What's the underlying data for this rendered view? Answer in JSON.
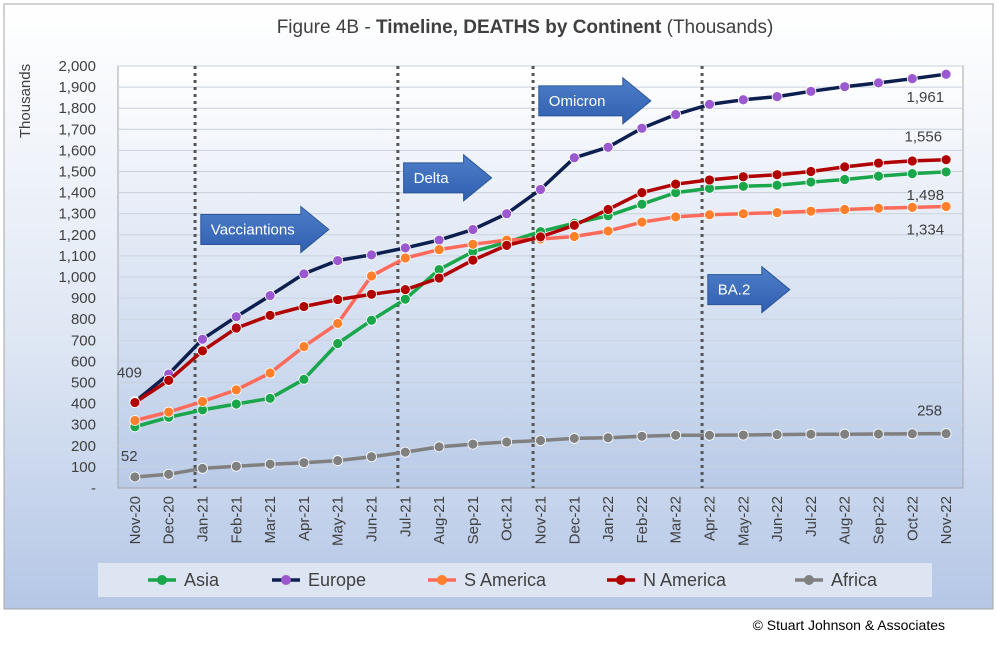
{
  "chart_data": {
    "type": "line",
    "title_prefix": "Figure 4B - ",
    "title_bold": "Timeline, DEATHS by Continent",
    "title_suffix": " (Thousands)",
    "ylabel": "Thousands",
    "xlabel": "",
    "ylim": [
      0,
      2000
    ],
    "ytick_step": 100,
    "ytick_labels": [
      "-",
      "100",
      "200",
      "300",
      "400",
      "500",
      "600",
      "700",
      "800",
      "900",
      "1,000",
      "1,100",
      "1,200",
      "1,300",
      "1,400",
      "1,500",
      "1,600",
      "1,700",
      "1,800",
      "1,900",
      "2,000"
    ],
    "grid": true,
    "legend_position": "bottom",
    "categories": [
      "Nov-20",
      "Dec-20",
      "Jan-21",
      "Feb-21",
      "Mar-21",
      "Apr-21",
      "May-21",
      "Jun-21",
      "Jul-21",
      "Aug-21",
      "Sep-21",
      "Oct-21",
      "Nov-21",
      "Dec-21",
      "Jan-22",
      "Feb-22",
      "Mar-22",
      "Apr-22",
      "May-22",
      "Jun-22",
      "Jul-22",
      "Aug-22",
      "Sep-22",
      "Oct-22",
      "Nov-22"
    ],
    "series": [
      {
        "name": "Asia",
        "color": "#1aa64a",
        "values": [
          290,
          335,
          370,
          398,
          425,
          515,
          685,
          795,
          895,
          1035,
          1120,
          1165,
          1215,
          1255,
          1290,
          1345,
          1400,
          1420,
          1430,
          1435,
          1450,
          1462,
          1478,
          1490,
          1498
        ]
      },
      {
        "name": "Europe",
        "color": "#0d1f4f",
        "marker": "#9b59d0",
        "values": [
          409,
          540,
          705,
          812,
          912,
          1015,
          1078,
          1105,
          1138,
          1175,
          1225,
          1300,
          1415,
          1565,
          1615,
          1705,
          1770,
          1818,
          1840,
          1855,
          1880,
          1902,
          1920,
          1940,
          1961
        ]
      },
      {
        "name": "S America",
        "color": "#ff6a5a",
        "marker": "#ff7f2a",
        "values": [
          320,
          360,
          410,
          465,
          545,
          670,
          780,
          1005,
          1090,
          1130,
          1155,
          1175,
          1180,
          1192,
          1218,
          1260,
          1285,
          1295,
          1300,
          1305,
          1312,
          1320,
          1326,
          1330,
          1334
        ]
      },
      {
        "name": "N America",
        "color": "#b00000",
        "values": [
          405,
          510,
          650,
          758,
          818,
          860,
          893,
          918,
          940,
          995,
          1080,
          1150,
          1190,
          1245,
          1320,
          1400,
          1440,
          1460,
          1475,
          1485,
          1500,
          1522,
          1540,
          1550,
          1556
        ]
      },
      {
        "name": "Africa",
        "color": "#808080",
        "values": [
          52,
          65,
          93,
          103,
          113,
          120,
          130,
          148,
          170,
          195,
          208,
          218,
          225,
          235,
          238,
          245,
          250,
          250,
          251,
          253,
          255,
          255,
          256,
          257,
          258
        ]
      }
    ],
    "point_labels": [
      {
        "series": "Europe",
        "index": 0,
        "text": "409",
        "pos": "above-left"
      },
      {
        "series": "Africa",
        "index": 0,
        "text": "52",
        "pos": "above"
      },
      {
        "series": "Europe",
        "index": 24,
        "text": "1,961",
        "pos": "below-left"
      },
      {
        "series": "N America",
        "index": 24,
        "text": "1,556",
        "pos": "above-left"
      },
      {
        "series": "Asia",
        "index": 24,
        "text": "1,498",
        "pos": "below-left"
      },
      {
        "series": "S America",
        "index": 24,
        "text": "1,334",
        "pos": "below-left"
      },
      {
        "series": "Africa",
        "index": 24,
        "text": "258",
        "pos": "above-left"
      }
    ],
    "annotations": [
      {
        "text": "Vacciantions",
        "at_category": "Jan-21",
        "y": 1225
      },
      {
        "text": "Delta",
        "at_category": "Jul-21",
        "y": 1470
      },
      {
        "text": "Omicron",
        "at_category": "Nov-21",
        "y": 1835
      },
      {
        "text": "BA.2",
        "at_category": "Apr-22",
        "y": 940
      }
    ],
    "vertical_markers": [
      "Jan-21",
      "Jul-21",
      "Nov-21",
      "Apr-22"
    ]
  },
  "footer": {
    "copyright": "© Stuart Johnson & Associates"
  }
}
